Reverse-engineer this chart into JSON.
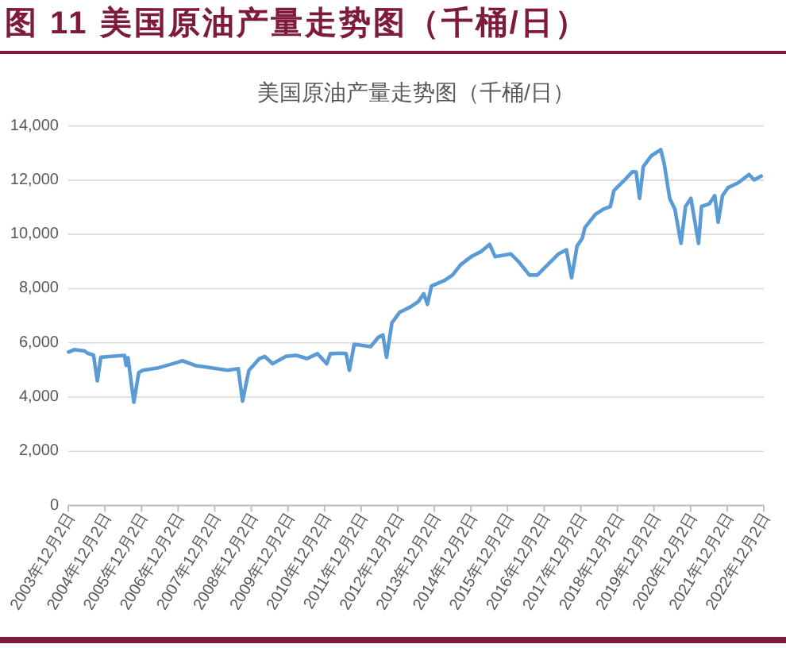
{
  "chart_data": {
    "type": "line",
    "title": "图 11 美国原油产量走势图（千桶/日）",
    "subtitle": "美国原油产量走势图（千桶/日）",
    "x": [
      "2003-12-05",
      "2004-01-30",
      "2004-05-14",
      "2004-06-10",
      "2004-08-10",
      "2004-09-17",
      "2004-10-22",
      "2005-02-04",
      "2005-06-15",
      "2005-07-01",
      "2005-07-20",
      "2005-09-16",
      "2005-11-04",
      "2005-12-16",
      "2006-05-20",
      "2006-10-28",
      "2007-01-15",
      "2007-05-26",
      "2007-11-02",
      "2008-04-08",
      "2008-07-24",
      "2008-09-05",
      "2008-11-07",
      "2009-02-20",
      "2009-04-15",
      "2009-07-02",
      "2009-11-12",
      "2010-02-24",
      "2010-06-10",
      "2010-09-23",
      "2010-12-24",
      "2011-01-29",
      "2011-05-19",
      "2011-07-05",
      "2011-08-07",
      "2011-09-24",
      "2012-03-06",
      "2012-05-24",
      "2012-07-06",
      "2012-08-12",
      "2012-10-05",
      "2012-12-21",
      "2013-04-05",
      "2013-06-24",
      "2013-08-18",
      "2013-09-24",
      "2013-11-03",
      "2014-03-14",
      "2014-06-01",
      "2014-08-21",
      "2014-12-05",
      "2015-03-18",
      "2015-06-06",
      "2015-07-31",
      "2016-01-05",
      "2016-03-25",
      "2016-07-07",
      "2016-09-24",
      "2016-12-13",
      "2017-04-23",
      "2017-07-12",
      "2017-09-01",
      "2017-10-26",
      "2017-12-17",
      "2018-01-12",
      "2018-04-27",
      "2018-07-16",
      "2018-09-23",
      "2018-10-29",
      "2019-02-13",
      "2019-05-01",
      "2019-06-07",
      "2019-07-12",
      "2019-08-18",
      "2019-11-03",
      "2020-02-08",
      "2020-03-14",
      "2020-05-07",
      "2020-06-28",
      "2020-08-28",
      "2020-10-12",
      "2020-12-05",
      "2021-02-19",
      "2021-03-21",
      "2021-06-08",
      "2021-07-31",
      "2021-09-03",
      "2021-10-16",
      "2021-12-09",
      "2022-03-24",
      "2022-07-08",
      "2022-08-29",
      "2022-11-06"
    ],
    "values": [
      5660,
      5750,
      5700,
      5620,
      5550,
      4600,
      5470,
      5500,
      5540,
      5170,
      5450,
      3810,
      4900,
      4990,
      5080,
      5250,
      5340,
      5160,
      5080,
      4990,
      5050,
      3850,
      4980,
      5420,
      5500,
      5230,
      5500,
      5540,
      5420,
      5600,
      5230,
      5600,
      5620,
      5600,
      4990,
      5950,
      5860,
      6210,
      6290,
      5470,
      6740,
      7130,
      7320,
      7520,
      7810,
      7420,
      8100,
      8300,
      8500,
      8880,
      9180,
      9380,
      9630,
      9180,
      9280,
      8980,
      8500,
      8500,
      8790,
      9280,
      9430,
      8400,
      9570,
      9860,
      10250,
      10740,
      10930,
      11030,
      11620,
      12010,
      12310,
      12300,
      11330,
      12500,
      12890,
      13130,
      12600,
      11330,
      10930,
      9670,
      11030,
      11330,
      9670,
      11030,
      11130,
      11430,
      10450,
      11430,
      11720,
      11910,
      12210,
      12010,
      12150
    ],
    "color": "#5b9bd5",
    "xlim": [
      "2003-12-02",
      "2022-12-02"
    ],
    "xticks": [
      {
        "value": "2003-12-02",
        "label": "2003年12月2日"
      },
      {
        "value": "2004-12-02",
        "label": "2004年12月2日"
      },
      {
        "value": "2005-12-02",
        "label": "2005年12月2日"
      },
      {
        "value": "2006-12-02",
        "label": "2006年12月2日"
      },
      {
        "value": "2007-12-02",
        "label": "2007年12月2日"
      },
      {
        "value": "2008-12-02",
        "label": "2008年12月2日"
      },
      {
        "value": "2009-12-02",
        "label": "2009年12月2日"
      },
      {
        "value": "2010-12-02",
        "label": "2010年12月2日"
      },
      {
        "value": "2011-12-02",
        "label": "2011年12月2日"
      },
      {
        "value": "2012-12-02",
        "label": "2012年12月2日"
      },
      {
        "value": "2013-12-02",
        "label": "2013年12月2日"
      },
      {
        "value": "2014-12-02",
        "label": "2014年12月2日"
      },
      {
        "value": "2015-12-02",
        "label": "2015年12月2日"
      },
      {
        "value": "2016-12-02",
        "label": "2016年12月2日"
      },
      {
        "value": "2017-12-02",
        "label": "2017年12月2日"
      },
      {
        "value": "2018-12-02",
        "label": "2018年12月2日"
      },
      {
        "value": "2019-12-02",
        "label": "2019年12月2日"
      },
      {
        "value": "2020-12-02",
        "label": "2020年12月2日"
      },
      {
        "value": "2021-12-02",
        "label": "2021年12月2日"
      },
      {
        "value": "2022-12-02",
        "label": "2022年12月2日"
      }
    ],
    "ylim": [
      0,
      14000
    ],
    "yticks": [
      0,
      {
        "value": 2000,
        "label": "2,000"
      },
      {
        "value": 4000,
        "label": "4,000"
      },
      {
        "value": 6000,
        "label": "6,000"
      },
      {
        "value": 8000,
        "label": "8,000"
      },
      {
        "value": 10000,
        "label": "10,000"
      },
      {
        "value": 12000,
        "label": "12,000"
      },
      {
        "value": 14000,
        "label": "14,000"
      }
    ],
    "grid": "y"
  }
}
